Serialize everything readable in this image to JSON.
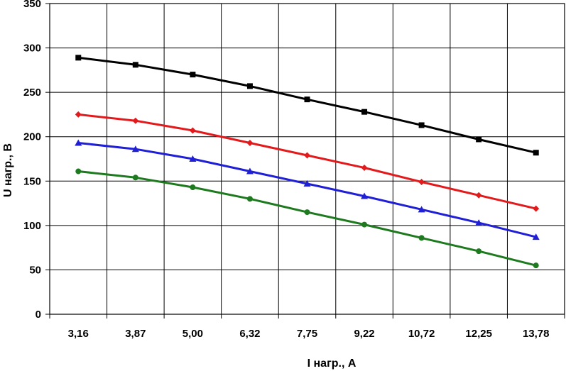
{
  "chart_data": {
    "type": "line",
    "title": "",
    "xlabel": "I нагр., А",
    "ylabel": "U нагр., В",
    "categories": [
      "3,16",
      "3,87",
      "5,00",
      "6,32",
      "7,75",
      "9,22",
      "10,72",
      "12,25",
      "13,78"
    ],
    "ylim": [
      0,
      350
    ],
    "yticks": [
      "0",
      "50",
      "100",
      "150",
      "200",
      "250",
      "300",
      "350"
    ],
    "grid": true,
    "legend": "none",
    "series": [
      {
        "values": [
          289,
          281,
          270,
          257,
          242,
          228,
          213,
          197,
          182
        ],
        "color": "#000000",
        "marker": "square"
      },
      {
        "values": [
          225,
          218,
          207,
          193,
          179,
          165,
          149,
          134,
          119
        ],
        "color": "#e31a1c",
        "marker": "diamond"
      },
      {
        "values": [
          193,
          186,
          175,
          161,
          147,
          133,
          118,
          103,
          87
        ],
        "color": "#1f1fd6",
        "marker": "triangle"
      },
      {
        "values": [
          161,
          154,
          143,
          130,
          115,
          101,
          86,
          71,
          55
        ],
        "color": "#1e7a1e",
        "marker": "circle"
      }
    ]
  }
}
